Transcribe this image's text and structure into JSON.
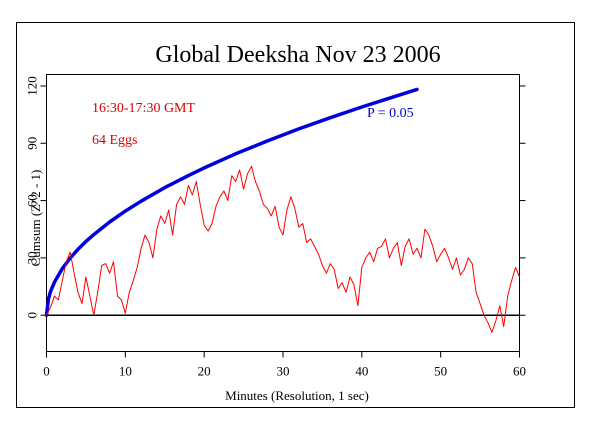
{
  "chart_data": {
    "type": "line",
    "title": "Global Deeksha Nov 23 2006",
    "xlabel": "Minutes (Resolution, 1 sec)",
    "ylabel": "Cumsum (Z^2 - 1)",
    "xlim": [
      0,
      60
    ],
    "ylim": [
      -19,
      126
    ],
    "x_ticks": [
      0,
      10,
      20,
      30,
      40,
      50,
      60
    ],
    "x_tick_labels": [
      "0",
      "10",
      "20",
      "30",
      "40",
      "50",
      "60"
    ],
    "y_ticks": [
      0,
      30,
      60,
      90,
      120
    ],
    "y_tick_labels": [
      "0",
      "30",
      "60",
      "90",
      "120"
    ],
    "grid": false,
    "annotations": [
      {
        "text": "16:30-17:30 GMT",
        "color": "#dd0000"
      },
      {
        "text": "64 Eggs",
        "color": "#dd0000"
      },
      {
        "text": "P = 0.05",
        "color": "#0000cc"
      }
    ],
    "series": [
      {
        "role": "cumulative deviation",
        "color": "#ff0000",
        "x": [
          0,
          0.5,
          1,
          1.5,
          2,
          2.5,
          3,
          3.5,
          4,
          4.5,
          5,
          5.5,
          6,
          6.5,
          7,
          7.5,
          8,
          8.5,
          9,
          9.5,
          10,
          10.5,
          11,
          11.5,
          12,
          12.5,
          13,
          13.5,
          14,
          14.5,
          15,
          15.5,
          16,
          16.5,
          17,
          17.5,
          18,
          18.5,
          19,
          19.5,
          20,
          20.5,
          21,
          21.5,
          22,
          22.5,
          23,
          23.5,
          24,
          24.5,
          25,
          25.5,
          26,
          26.5,
          27,
          27.5,
          28,
          28.5,
          29,
          29.5,
          30,
          30.5,
          31,
          31.5,
          32,
          32.5,
          33,
          33.5,
          34,
          34.5,
          35,
          35.5,
          36,
          36.5,
          37,
          37.5,
          38,
          38.5,
          39,
          39.5,
          40,
          40.5,
          41,
          41.5,
          42,
          42.5,
          43,
          43.5,
          44,
          44.5,
          45,
          45.5,
          46,
          46.5,
          47,
          47.5,
          48,
          48.5,
          49,
          49.5,
          50,
          50.5,
          51,
          51.5,
          52,
          52.5,
          53,
          53.5,
          54,
          54.5,
          55,
          55.5,
          56,
          56.5,
          57,
          57.5,
          58,
          58.5,
          59,
          59.5,
          60
        ],
        "y": [
          0,
          4,
          10,
          8,
          18,
          28,
          33,
          22,
          12,
          6,
          20,
          10,
          0,
          12,
          26,
          27,
          22,
          28,
          10,
          8,
          1,
          12,
          18,
          25,
          35,
          42,
          38,
          30,
          45,
          52,
          48,
          55,
          42,
          58,
          62,
          58,
          68,
          63,
          70,
          58,
          47,
          44,
          48,
          57,
          62,
          65,
          60,
          73,
          70,
          76,
          66,
          74,
          78,
          70,
          65,
          58,
          56,
          52,
          57,
          46,
          42,
          55,
          62,
          56,
          46,
          48,
          38,
          40,
          36,
          32,
          26,
          22,
          27,
          24,
          14,
          17,
          12,
          20,
          16,
          5,
          25,
          30,
          33,
          28,
          35,
          36,
          40,
          30,
          35,
          38,
          26,
          36,
          40,
          32,
          35,
          30,
          45,
          42,
          36,
          28,
          32,
          35,
          30,
          24,
          30,
          21,
          24,
          30,
          27,
          12,
          6,
          0,
          -4,
          -9,
          -3,
          5,
          -6,
          10,
          18,
          25,
          20
        ]
      },
      {
        "name": "P = 0.05",
        "role": "probability envelope",
        "color": "#0000dd",
        "x": [
          0,
          0.25,
          0.5,
          1,
          2,
          3,
          4,
          5,
          6,
          8,
          10,
          12,
          15,
          18,
          20,
          24,
          28,
          32,
          36,
          40,
          44,
          47
        ],
        "y": [
          0,
          8.6,
          12.2,
          17.2,
          24.4,
          29.9,
          34.5,
          38.6,
          42.2,
          48.8,
          54.5,
          59.7,
          66.8,
          73.1,
          77.1,
          84.5,
          91.2,
          97.5,
          103.4,
          109.0,
          114.3,
          118.2
        ]
      }
    ]
  }
}
